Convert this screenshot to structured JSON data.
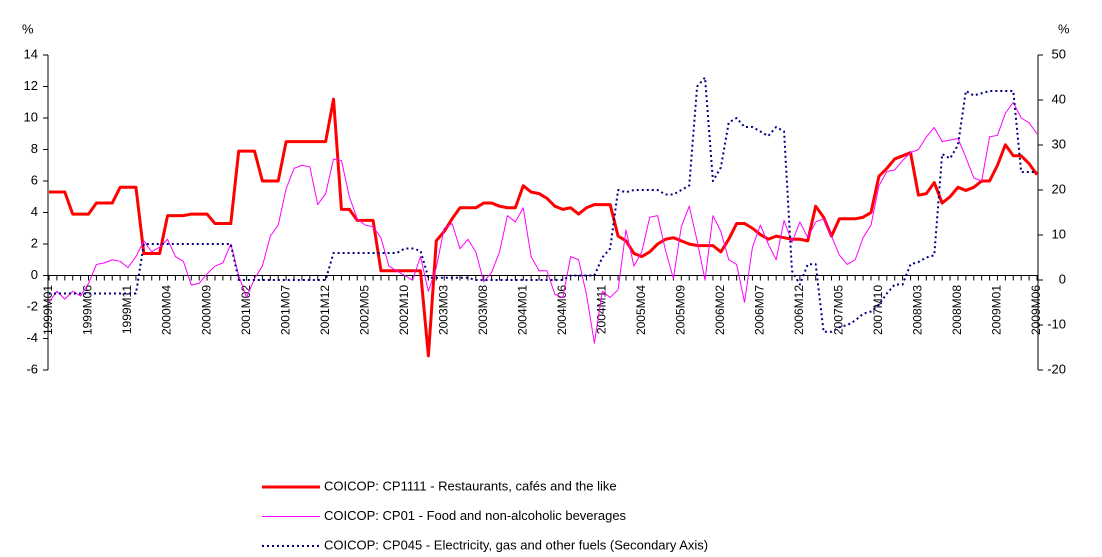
{
  "chart_data": {
    "type": "line",
    "y_label": "%",
    "y2_label": "%",
    "categories": [
      "1999M01",
      null,
      null,
      null,
      null,
      "1999M06",
      null,
      null,
      null,
      null,
      "1999M11",
      null,
      null,
      null,
      null,
      "2000M04",
      null,
      null,
      null,
      null,
      "2000M09",
      null,
      null,
      null,
      null,
      "2001M02",
      null,
      null,
      null,
      null,
      "2001M07",
      null,
      null,
      null,
      null,
      "2001M12",
      null,
      null,
      null,
      null,
      "2002M05",
      null,
      null,
      null,
      null,
      "2002M10",
      null,
      null,
      null,
      null,
      "2003M03",
      null,
      null,
      null,
      null,
      "2003M08",
      null,
      null,
      null,
      null,
      "2004M01",
      null,
      null,
      null,
      null,
      "2004M06",
      null,
      null,
      null,
      null,
      "2004M11",
      null,
      null,
      null,
      null,
      "2005M04",
      null,
      null,
      null,
      null,
      "2005M09",
      null,
      null,
      null,
      null,
      "2006M02",
      null,
      null,
      null,
      null,
      "2006M07",
      null,
      null,
      null,
      null,
      "2006M12",
      null,
      null,
      null,
      null,
      "2007M05",
      null,
      null,
      null,
      null,
      "2007M10",
      null,
      null,
      null,
      null,
      "2008M03",
      null,
      null,
      null,
      null,
      "2008M08",
      null,
      null,
      null,
      null,
      "2009M01",
      null,
      null,
      null,
      null,
      "2009M06"
    ],
    "series": [
      {
        "name": "COICOP: CP1111 - Restaurants, cafés and the like",
        "color": "#ff0000",
        "width": 3,
        "dash": "none",
        "axis": "y",
        "values": [
          5.3,
          5.3,
          5.3,
          3.9,
          3.9,
          3.9,
          4.6,
          4.6,
          4.6,
          5.6,
          5.6,
          5.6,
          1.4,
          1.4,
          1.4,
          3.8,
          3.8,
          3.8,
          3.9,
          3.9,
          3.9,
          3.3,
          3.3,
          3.3,
          7.9,
          7.9,
          7.9,
          6.0,
          6.0,
          6.0,
          8.5,
          8.5,
          8.5,
          8.5,
          8.5,
          8.5,
          11.2,
          4.2,
          4.2,
          3.5,
          3.5,
          3.5,
          0.3,
          0.3,
          0.3,
          0.3,
          0.3,
          0.3,
          -5.1,
          2.2,
          2.8,
          3.6,
          4.3,
          4.3,
          4.3,
          4.6,
          4.6,
          4.4,
          4.3,
          4.3,
          5.7,
          5.3,
          5.2,
          4.9,
          4.4,
          4.2,
          4.3,
          3.9,
          4.3,
          4.5,
          4.5,
          4.5,
          2.5,
          2.2,
          1.4,
          1.2,
          1.5,
          2.0,
          2.3,
          2.4,
          2.2,
          2.0,
          1.9,
          1.9,
          1.9,
          1.5,
          2.3,
          3.3,
          3.3,
          3.0,
          2.6,
          2.3,
          2.5,
          2.4,
          2.3,
          2.3,
          2.2,
          4.4,
          3.7,
          2.5,
          3.6,
          3.6,
          3.6,
          3.7,
          4.0,
          6.3,
          6.8,
          7.4,
          7.6,
          7.8,
          5.1,
          5.2,
          5.9,
          4.6,
          5.0,
          5.6,
          5.4,
          5.6,
          6.0,
          6.0,
          7.0,
          8.3,
          7.6,
          7.6,
          7.1,
          6.4
        ]
      },
      {
        "name": "COICOP: CP01 - Food and non-alcoholic beverages",
        "color": "#ff00ff",
        "width": 1,
        "dash": "none",
        "axis": "y",
        "values": [
          -1.7,
          -1.0,
          -1.5,
          -1.0,
          -1.3,
          -0.5,
          0.7,
          0.8,
          1.0,
          0.9,
          0.5,
          1.2,
          2.2,
          1.5,
          1.8,
          2.3,
          1.2,
          0.9,
          -0.6,
          -0.5,
          0.1,
          0.6,
          0.8,
          2.0,
          0.0,
          -1.4,
          -0.2,
          0.6,
          2.5,
          3.2,
          5.5,
          6.8,
          7.0,
          6.9,
          4.5,
          5.2,
          7.4,
          7.3,
          5.0,
          3.6,
          3.2,
          3.1,
          2.4,
          0.6,
          0.3,
          0.0,
          -0.3,
          1.2,
          -1.0,
          0.5,
          3.0,
          3.3,
          1.7,
          2.3,
          1.5,
          -0.4,
          0.2,
          1.5,
          3.8,
          3.4,
          4.3,
          1.2,
          0.3,
          0.3,
          -1.2,
          -1.4,
          1.2,
          1.0,
          -1.2,
          -4.3,
          -1.0,
          -1.4,
          -0.9,
          2.9,
          0.6,
          1.5,
          3.7,
          3.8,
          1.6,
          -0.2,
          3.1,
          4.4,
          2.2,
          -0.3,
          3.8,
          2.8,
          1.0,
          0.7,
          -1.7,
          1.8,
          3.2,
          2.0,
          1.0,
          3.5,
          2.1,
          3.4,
          2.4,
          3.4,
          3.6,
          2.5,
          1.3,
          0.7,
          1.0,
          2.4,
          3.2,
          5.7,
          6.6,
          6.7,
          7.3,
          7.8,
          8.0,
          8.8,
          9.4,
          8.5,
          8.6,
          8.7,
          7.5,
          6.2,
          6.0,
          8.8,
          8.9,
          10.3,
          11.0,
          10.0,
          9.7,
          9.0
        ]
      },
      {
        "name": "COICOP: CP045 - Electricity, gas and other fuels (Secondary Axis)",
        "color": "#000080",
        "width": 2,
        "dash": "2,3",
        "axis": "y2",
        "values": [
          -3,
          -3,
          -3,
          -3,
          -3,
          -3,
          -3,
          -3,
          -3,
          -3,
          -3,
          -3,
          8,
          8,
          8,
          8,
          8,
          8,
          8,
          8,
          8,
          8,
          8,
          8,
          0,
          0,
          0,
          0,
          0,
          0,
          0,
          0,
          0,
          0,
          0,
          0,
          6,
          6,
          6,
          6,
          6,
          6,
          6,
          6,
          6,
          7,
          7,
          6.5,
          0.5,
          0.5,
          0.5,
          0.5,
          0.5,
          0.5,
          0,
          0,
          0,
          0,
          0,
          0,
          0,
          0,
          0,
          0,
          0,
          0,
          1,
          1,
          1,
          1,
          5,
          7,
          20,
          19.5,
          20,
          20,
          20,
          20,
          19,
          19,
          20,
          21,
          43,
          45,
          22,
          25,
          35,
          36,
          34,
          34,
          33,
          32,
          34,
          33,
          2,
          -1,
          3.5,
          3.5,
          -11.5,
          -11.5,
          -10.5,
          -10,
          -9,
          -7.5,
          -7,
          -5.5,
          -3,
          -1,
          -1,
          3.5,
          4,
          5,
          5.5,
          28,
          27,
          30,
          42,
          41,
          41.5,
          42,
          42,
          42,
          42,
          24,
          24,
          24
        ]
      }
    ],
    "ylim": [
      -6,
      14
    ],
    "yticks": [
      -6,
      -4,
      -2,
      0,
      2,
      4,
      6,
      8,
      10,
      12,
      14
    ],
    "y2lim": [
      -20,
      50
    ],
    "y2ticks": [
      -20,
      -10,
      0,
      10,
      20,
      30,
      40,
      50
    ],
    "grid": false,
    "legend": "bottom"
  }
}
